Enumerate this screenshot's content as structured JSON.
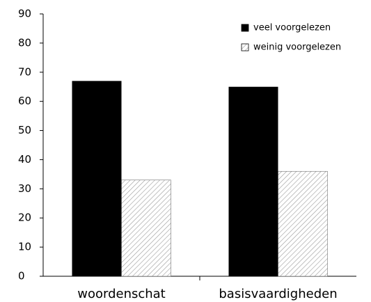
{
  "chart_data": {
    "type": "bar",
    "categories": [
      "woordenschat",
      "basisvaardigheden"
    ],
    "series": [
      {
        "name": "veel voorgelezen",
        "color": "#000000",
        "values": [
          67,
          65
        ]
      },
      {
        "name": "weinig voorgelezen",
        "color": "#9a9a9a",
        "pattern": "hatch",
        "values": [
          33,
          36
        ]
      }
    ],
    "ylim": [
      0,
      90
    ],
    "yticks": [
      0,
      10,
      20,
      30,
      40,
      50,
      60,
      70,
      80,
      90
    ],
    "grid": false,
    "legend": "top-right"
  }
}
